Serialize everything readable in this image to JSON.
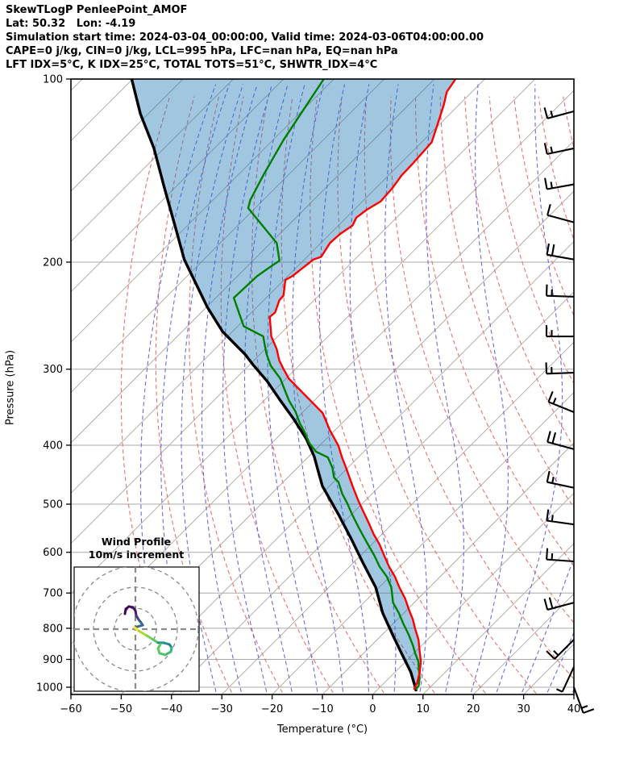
{
  "header": {
    "line1": "SkewTLogP PenleePoint_AMOF",
    "line2": "Lat: 50.32   Lon: -4.19",
    "line3": "Simulation start time: 2024-03-04_00:00:00, Valid time: 2024-03-06T04:00:00.00",
    "line4": "CAPE=0 j/kg, CIN=0 j/kg, LCL=995 hPa, LFC=nan hPa, EQ=nan hPa",
    "line5": "LFT IDX=5°C, K IDX=25°C, TOTAL TOTS=51°C, SHWTR_IDX=4°C"
  },
  "axes": {
    "x_label": "Temperature (°C)",
    "y_label": "Pressure (hPa)",
    "x_tick_labels": [
      "−60",
      "−50",
      "−40",
      "−30",
      "−20",
      "−10",
      "0",
      "10",
      "20",
      "30",
      "40"
    ],
    "x_tick_values": [
      -60,
      -50,
      -40,
      -30,
      -20,
      -10,
      0,
      10,
      20,
      30,
      40
    ],
    "y_tick_values": [
      100,
      200,
      300,
      400,
      500,
      600,
      700,
      800,
      900,
      1000
    ]
  },
  "inset": {
    "title_line1": "Wind Profile",
    "title_line2": "10m/s increment",
    "ring_increment_ms": 10,
    "rings_ms": [
      10,
      20,
      30
    ]
  },
  "colors": {
    "temperature": "#ff0000",
    "dewpoint": "#008000",
    "parcel": "#000000",
    "shade_fill": "#1f77b4",
    "shade_alpha": 0.42,
    "isotherm": "#b5aea6",
    "pressure_grid": "#a9a9a9",
    "dry_adiabat": "#e87272",
    "moist_adiabat": "#6b6bdf",
    "barb": "#000000",
    "inset_grid": "#8a8a8a"
  },
  "chart_data": {
    "type": "skewt-logp",
    "title": "SkewTLogP PenleePoint_AMOF",
    "x_range_c": [
      -60,
      40
    ],
    "p_top_hpa": 100,
    "p_bottom_hpa": 1028,
    "skew_deg": 45,
    "grid": true,
    "series": [
      {
        "name": "temperature",
        "style": "solid red 2.5px",
        "points_p_t": [
          [
            100,
            -105.8
          ],
          [
            105,
            -105.0
          ],
          [
            110,
            -103.1
          ],
          [
            116,
            -101.2
          ],
          [
            127,
            -98.0
          ],
          [
            138,
            -97.5
          ],
          [
            144,
            -97.4
          ],
          [
            151,
            -96.7
          ],
          [
            159,
            -96.4
          ],
          [
            164,
            -97.5
          ],
          [
            169,
            -98.0
          ],
          [
            174,
            -97.2
          ],
          [
            180,
            -98.0
          ],
          [
            186,
            -98.2
          ],
          [
            196,
            -97.2
          ],
          [
            198,
            -98.2
          ],
          [
            211,
            -99.1
          ],
          [
            214,
            -99.7
          ],
          [
            227,
            -97.0
          ],
          [
            231,
            -96.9
          ],
          [
            242,
            -95.3
          ],
          [
            246,
            -95.5
          ],
          [
            265,
            -91.3
          ],
          [
            278,
            -87.7
          ],
          [
            290,
            -85.0
          ],
          [
            299,
            -82.6
          ],
          [
            311,
            -79.4
          ],
          [
            331,
            -72.9
          ],
          [
            354,
            -65.9
          ],
          [
            378,
            -61.0
          ],
          [
            401,
            -56.2
          ],
          [
            419,
            -53.2
          ],
          [
            436,
            -50.3
          ],
          [
            449,
            -48.2
          ],
          [
            467,
            -45.4
          ],
          [
            492,
            -41.6
          ],
          [
            515,
            -38.1
          ],
          [
            536,
            -35.0
          ],
          [
            560,
            -31.7
          ],
          [
            582,
            -28.5
          ],
          [
            606,
            -25.5
          ],
          [
            633,
            -22.2
          ],
          [
            658,
            -19.0
          ],
          [
            685,
            -16.0
          ],
          [
            715,
            -12.6
          ],
          [
            744,
            -9.8
          ],
          [
            774,
            -6.9
          ],
          [
            803,
            -4.5
          ],
          [
            835,
            -1.8
          ],
          [
            872,
            0.7
          ],
          [
            907,
            3.0
          ],
          [
            944,
            4.9
          ],
          [
            985,
            6.6
          ],
          [
            1009,
            7.2
          ]
        ]
      },
      {
        "name": "dewpoint",
        "style": "solid green 2.5px",
        "points_p_t": [
          [
            100,
            -132.0
          ],
          [
            126,
            -127.9
          ],
          [
            144,
            -124.9
          ],
          [
            158,
            -122.6
          ],
          [
            163,
            -121.4
          ],
          [
            186,
            -108.8
          ],
          [
            199,
            -104.7
          ],
          [
            205,
            -105.5
          ],
          [
            211,
            -106.1
          ],
          [
            229,
            -106.4
          ],
          [
            240,
            -103.1
          ],
          [
            255,
            -98.8
          ],
          [
            265,
            -92.9
          ],
          [
            276,
            -90.4
          ],
          [
            283,
            -88.8
          ],
          [
            296,
            -85.6
          ],
          [
            311,
            -81.1
          ],
          [
            324,
            -78.1
          ],
          [
            338,
            -75.0
          ],
          [
            352,
            -71.6
          ],
          [
            368,
            -68.4
          ],
          [
            381,
            -65.6
          ],
          [
            397,
            -62.5
          ],
          [
            410,
            -59.5
          ],
          [
            419,
            -56.0
          ],
          [
            436,
            -53.0
          ],
          [
            452,
            -50.8
          ],
          [
            460,
            -49.0
          ],
          [
            481,
            -45.9
          ],
          [
            498,
            -43.1
          ],
          [
            521,
            -39.7
          ],
          [
            546,
            -36.0
          ],
          [
            568,
            -32.8
          ],
          [
            585,
            -30.4
          ],
          [
            608,
            -27.2
          ],
          [
            633,
            -24.1
          ],
          [
            658,
            -20.6
          ],
          [
            685,
            -17.6
          ],
          [
            726,
            -14.2
          ],
          [
            755,
            -11.0
          ],
          [
            786,
            -8.0
          ],
          [
            820,
            -4.7
          ],
          [
            853,
            -1.8
          ],
          [
            880,
            0.3
          ],
          [
            907,
            2.5
          ],
          [
            935,
            4.2
          ],
          [
            964,
            6.0
          ],
          [
            994,
            7.4
          ],
          [
            1009,
            7.6
          ]
        ]
      },
      {
        "name": "parcel_reference",
        "style": "solid black 3.5px",
        "points_p_t": [
          [
            100,
            -170.2
          ],
          [
            114,
            -161.6
          ],
          [
            130,
            -152.0
          ],
          [
            150,
            -142.5
          ],
          [
            177,
            -131.4
          ],
          [
            198,
            -123.9
          ],
          [
            237,
            -109.9
          ],
          [
            260,
            -102.0
          ],
          [
            284,
            -92.8
          ],
          [
            295,
            -89.3
          ],
          [
            314,
            -83.2
          ],
          [
            338,
            -76.7
          ],
          [
            362,
            -70.5
          ],
          [
            390,
            -64.1
          ],
          [
            417,
            -59.0
          ],
          [
            442,
            -55.1
          ],
          [
            467,
            -51.4
          ],
          [
            521,
            -42.4
          ],
          [
            568,
            -35.5
          ],
          [
            626,
            -27.9
          ],
          [
            685,
            -20.7
          ],
          [
            755,
            -14.2
          ],
          [
            820,
            -7.9
          ],
          [
            888,
            -1.7
          ],
          [
            944,
            3.1
          ],
          [
            994,
            6.6
          ],
          [
            1015,
            8.0
          ]
        ]
      }
    ],
    "shade_between": [
      "parcel_reference",
      "temperature"
    ],
    "background": {
      "isotherms_c": [
        -180,
        -170,
        -160,
        -150,
        -140,
        -130,
        -120,
        -110,
        -100,
        -90,
        -80,
        -70,
        -60,
        -50,
        -40,
        -30,
        -20,
        -10,
        0,
        10,
        20,
        30,
        40
      ],
      "dry_adiabats_theta_c": [
        -40,
        -30,
        -20,
        -10,
        0,
        10,
        20,
        30,
        40,
        50,
        60,
        70,
        80,
        90,
        100,
        110,
        120,
        130,
        140,
        150
      ],
      "dry_adiabat_exponent": 0.32,
      "moist_adiabats_start_c": [
        -40,
        -35,
        -30,
        -25,
        -20,
        -15,
        -10,
        -5,
        0,
        5,
        10,
        15,
        20,
        25,
        30,
        35,
        40
      ]
    },
    "wind_barbs": [
      {
        "p": 113,
        "dir": 255,
        "ticks": "FH"
      },
      {
        "p": 130,
        "dir": 258,
        "ticks": "FH"
      },
      {
        "p": 149,
        "dir": 260,
        "ticks": "FH"
      },
      {
        "p": 172,
        "dir": 285,
        "ticks": "F"
      },
      {
        "p": 198,
        "dir": 280,
        "ticks": "FF"
      },
      {
        "p": 228,
        "dir": 272,
        "ticks": "FH"
      },
      {
        "p": 265,
        "dir": 270,
        "ticks": "FH"
      },
      {
        "p": 304,
        "dir": 268,
        "ticks": "FH"
      },
      {
        "p": 353,
        "dir": 292,
        "ticks": "FH"
      },
      {
        "p": 406,
        "dir": 285,
        "ticks": "FF"
      },
      {
        "p": 470,
        "dir": 282,
        "ticks": "FH"
      },
      {
        "p": 540,
        "dir": 278,
        "ticks": "FH"
      },
      {
        "p": 621,
        "dir": 274,
        "ticks": "FH"
      },
      {
        "p": 726,
        "dir": 255,
        "ticks": "FF"
      },
      {
        "p": 835,
        "dir": 225,
        "ticks": "FH"
      },
      {
        "p": 926,
        "dir": 205,
        "ticks": "H"
      },
      {
        "p": 1000,
        "dir": 160,
        "ticks": "FH"
      }
    ],
    "hodograph_trace_uv": [
      {
        "u": -5.0,
        "v": 7.3,
        "c": null
      },
      {
        "u": -4.6,
        "v": 9.6,
        "c": "#440154"
      },
      {
        "u": -3.1,
        "v": 10.8,
        "c": "#440154"
      },
      {
        "u": -1.2,
        "v": 10.4,
        "c": "#46085c"
      },
      {
        "u": 0.0,
        "v": 8.8,
        "c": "#471063"
      },
      {
        "u": 0.4,
        "v": 6.5,
        "c": "#481769"
      },
      {
        "u": 1.5,
        "v": 4.6,
        "c": "#453781"
      },
      {
        "u": 2.7,
        "v": 3.1,
        "c": "#3b528b"
      },
      {
        "u": 3.5,
        "v": 1.9,
        "c": "#2c728e"
      },
      {
        "u": -0.4,
        "v": 0.8,
        "c": "#31688e"
      },
      {
        "u": 1.5,
        "v": -0.8,
        "c": "#fde725"
      },
      {
        "u": 5.4,
        "v": -3.1,
        "c": "#addc30"
      },
      {
        "u": 8.5,
        "v": -5.0,
        "c": "#7ad151"
      },
      {
        "u": 10.8,
        "v": -6.5,
        "c": "#54c568"
      },
      {
        "u": 13.5,
        "v": -6.5,
        "c": "#21918c"
      },
      {
        "u": 16.2,
        "v": -7.3,
        "c": "#21918c"
      },
      {
        "u": 17.3,
        "v": -8.8,
        "c": "#26828e"
      },
      {
        "u": 16.9,
        "v": -10.8,
        "c": "#31b57b"
      },
      {
        "u": 14.2,
        "v": -12.3,
        "c": "#3dbc74"
      },
      {
        "u": 11.5,
        "v": -11.5,
        "c": "#4ec36b"
      },
      {
        "u": 10.8,
        "v": -9.2,
        "c": "#5ec962"
      },
      {
        "u": 11.9,
        "v": -7.3,
        "c": "#5ec962"
      }
    ]
  }
}
